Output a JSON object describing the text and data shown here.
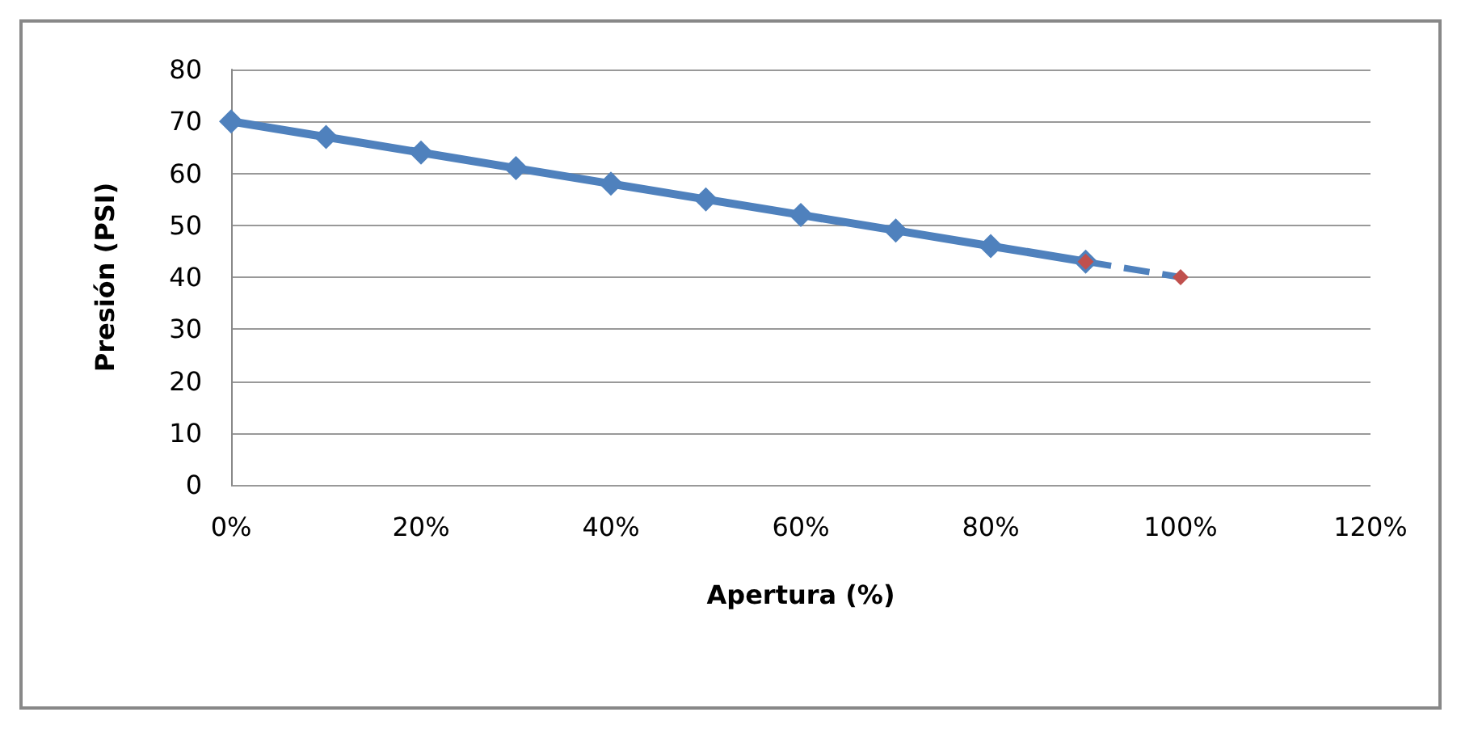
{
  "chart_data": {
    "type": "line",
    "xlabel": "Apertura (%)",
    "ylabel": "Presión (PSI)",
    "xlim": [
      0,
      1.2
    ],
    "xticks": [
      {
        "value": 0,
        "label": "0%"
      },
      {
        "value": 0.2,
        "label": "20%"
      },
      {
        "value": 0.4,
        "label": "40%"
      },
      {
        "value": 0.6,
        "label": "60%"
      },
      {
        "value": 0.8,
        "label": "80%"
      },
      {
        "value": 1,
        "label": "100%"
      },
      {
        "value": 1.2,
        "label": "120%"
      }
    ],
    "ylim": [
      0,
      80
    ],
    "yticks": [
      0,
      10,
      20,
      30,
      40,
      50,
      60,
      70,
      80
    ],
    "grid": "y",
    "series": [
      {
        "color": "#4f81bd",
        "marker": "diamond",
        "line_style": "solid",
        "x": [
          0,
          0.1,
          0.2,
          0.3,
          0.4,
          0.5,
          0.6,
          0.7,
          0.8,
          0.9
        ],
        "values": [
          70,
          67,
          64,
          61,
          58,
          55,
          52,
          49,
          46,
          43
        ]
      },
      {
        "color": "#4f81bd",
        "marker": "none",
        "line_style": "dashed",
        "x": [
          0.9,
          1
        ],
        "values": [
          43,
          40
        ]
      },
      {
        "type": "scatter",
        "color": "#c0504d",
        "marker": "diamond",
        "x": [
          0.9,
          1
        ],
        "values": [
          43,
          40
        ]
      }
    ]
  }
}
